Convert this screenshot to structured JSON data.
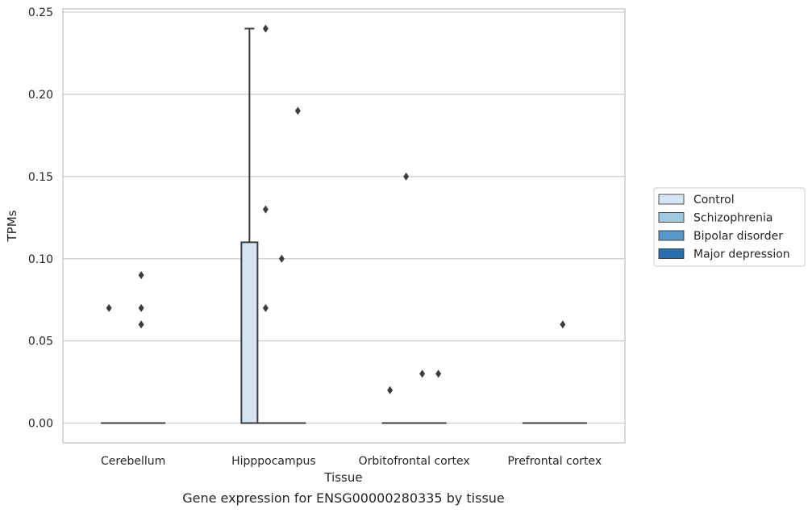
{
  "caption": "Gene expression for ENSG00000280335 by tissue",
  "chart_data": {
    "type": "boxplot",
    "xlabel": "Tissue",
    "ylabel": "TPMs",
    "ylim": [
      -0.012,
      0.252
    ],
    "yticks": [
      "0.00",
      "0.05",
      "0.10",
      "0.15",
      "0.20",
      "0.25"
    ],
    "categories": [
      "Cerebellum",
      "Hipppocampus",
      "Orbitofrontal cortex",
      "Prefrontal cortex"
    ],
    "grid": true,
    "legend_position": "right",
    "series": [
      {
        "name": "Control",
        "color": "#d6e5f4"
      },
      {
        "name": "Schizophrenia",
        "color": "#a0cadf"
      },
      {
        "name": "Bipolar disorder",
        "color": "#5898c8"
      },
      {
        "name": "Major depression",
        "color": "#2a6ead"
      }
    ],
    "boxes": [
      {
        "category": "Hipppocampus",
        "series": "Control",
        "q1": 0,
        "median": 0,
        "q3": 0.11,
        "whisker_low": 0,
        "whisker_high": 0.24
      }
    ],
    "medians": [
      {
        "category": "Cerebellum",
        "value": 0
      },
      {
        "category": "Hipppocampus",
        "value": 0
      },
      {
        "category": "Orbitofrontal cortex",
        "value": 0
      },
      {
        "category": "Prefrontal cortex",
        "value": 0
      }
    ],
    "outliers": [
      {
        "category": "Cerebellum",
        "series": "Control",
        "values": [
          0.07
        ]
      },
      {
        "category": "Cerebellum",
        "series": "Bipolar disorder",
        "values": [
          0.09,
          0.07,
          0.06
        ]
      },
      {
        "category": "Hipppocampus",
        "series": "Schizophrenia",
        "values": [
          0.24,
          0.13,
          0.07
        ]
      },
      {
        "category": "Hipppocampus",
        "series": "Bipolar disorder",
        "values": [
          0.1
        ]
      },
      {
        "category": "Hipppocampus",
        "series": "Major depression",
        "values": [
          0.19
        ]
      },
      {
        "category": "Orbitofrontal cortex",
        "series": "Control",
        "values": [
          0.02
        ]
      },
      {
        "category": "Orbitofrontal cortex",
        "series": "Schizophrenia",
        "values": [
          0.15
        ]
      },
      {
        "category": "Orbitofrontal cortex",
        "series": "Bipolar disorder",
        "values": [
          0.03
        ]
      },
      {
        "category": "Orbitofrontal cortex",
        "series": "Major depression",
        "values": [
          0.03
        ]
      },
      {
        "category": "Prefrontal cortex",
        "series": "Bipolar disorder",
        "values": [
          0.06
        ]
      }
    ]
  }
}
